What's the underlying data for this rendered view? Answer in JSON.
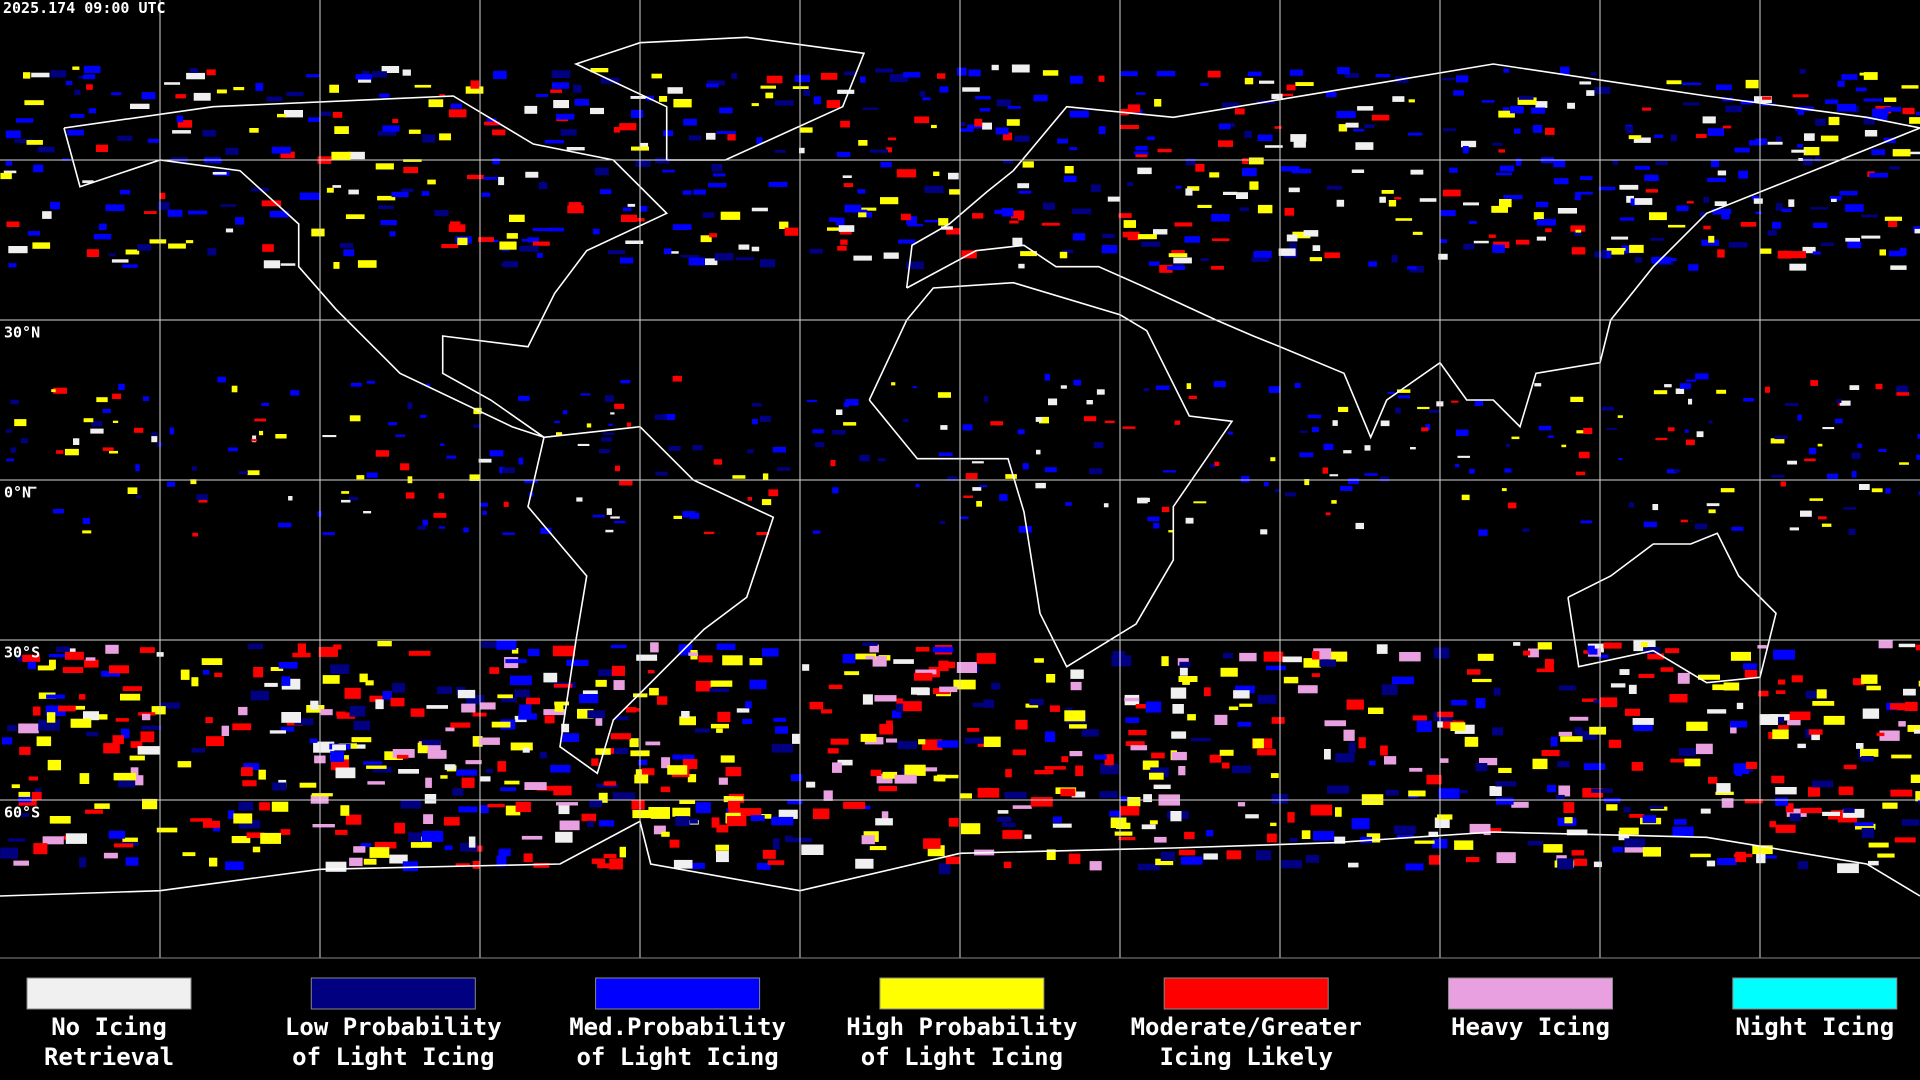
{
  "timestamp": "2025.174 09:00 UTC",
  "latitude_labels": [
    "30°N",
    "0°N",
    "30°S",
    "60°S"
  ],
  "legend": [
    {
      "lines": [
        "No Icing",
        "Retrieval"
      ],
      "color": "#f0f0f0"
    },
    {
      "lines": [
        "Low Probability",
        "of Light Icing"
      ],
      "color": "#000080"
    },
    {
      "lines": [
        "Med.Probability",
        "of Light Icing"
      ],
      "color": "#0000ff"
    },
    {
      "lines": [
        "High Probability",
        "of Light Icing"
      ],
      "color": "#ffff00"
    },
    {
      "lines": [
        "Moderate/Greater",
        "Icing Likely"
      ],
      "color": "#ff0000"
    },
    {
      "lines": [
        "Heavy Icing"
      ],
      "color": "#e8a0e0"
    },
    {
      "lines": [
        "Night Icing"
      ],
      "color": "#00ffff"
    }
  ]
}
